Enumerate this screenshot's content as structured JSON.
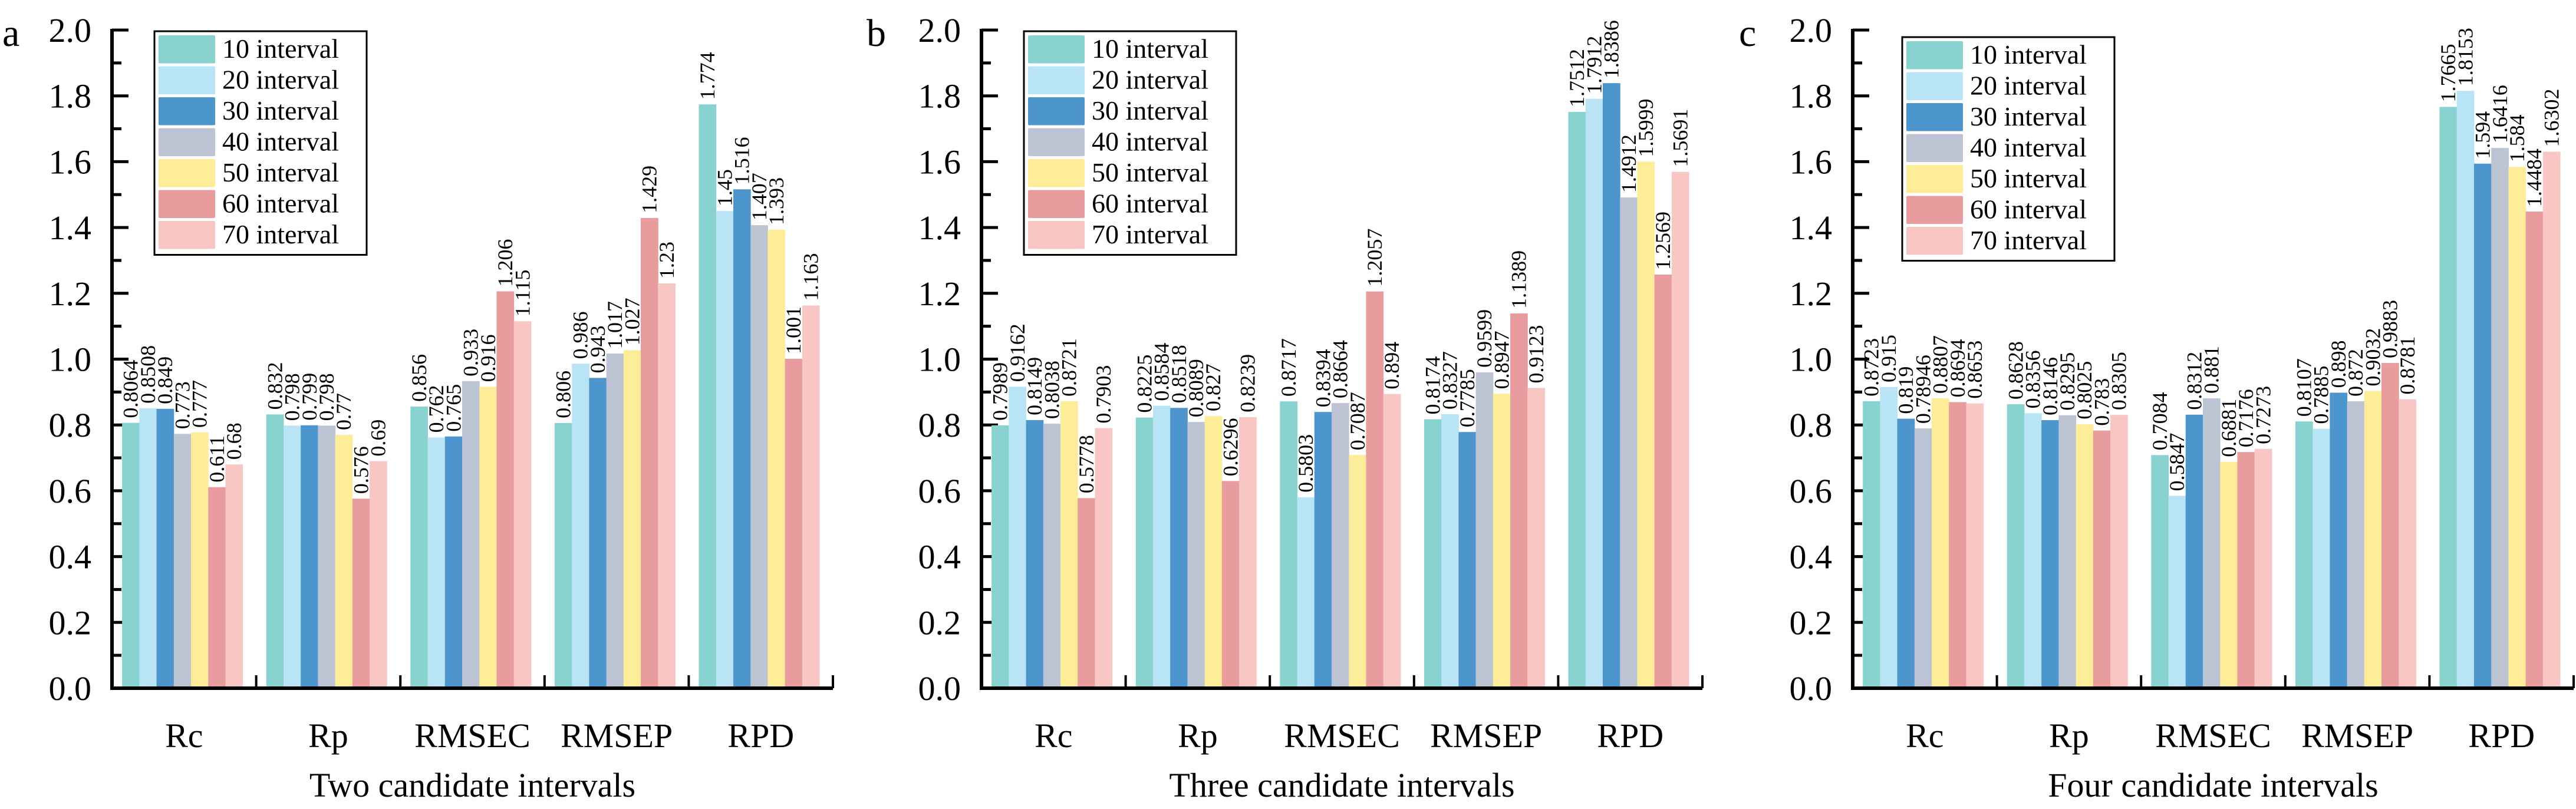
{
  "chart_data": [
    {
      "type": "bar",
      "panel_label": "a",
      "title": "",
      "xlabel": "Two candidate intervals",
      "ylabel": "",
      "ylim": [
        0,
        2.0
      ],
      "yticks": [
        "0.0",
        "0.2",
        "0.4",
        "0.6",
        "0.8",
        "1.0",
        "1.2",
        "1.4",
        "1.6",
        "1.8",
        "2.0"
      ],
      "grid": false,
      "legend_position": "top-left",
      "categories": [
        "Rc",
        "Rp",
        "RMSEC",
        "RMSEP",
        "RPD"
      ],
      "series": [
        {
          "name": "10 interval",
          "color": "#88d2cf",
          "values": [
            0.8064,
            0.832,
            0.856,
            0.806,
            1.774
          ],
          "labels": [
            "0.8064",
            "0.832",
            "0.856",
            "0.806",
            "1.774"
          ]
        },
        {
          "name": "20 interval",
          "color": "#b8e4f6",
          "values": [
            0.8508,
            0.798,
            0.762,
            0.986,
            1.45
          ],
          "labels": [
            "0.8508",
            "0.798",
            "0.762",
            "0.986",
            "1.45"
          ]
        },
        {
          "name": "30 interval",
          "color": "#4d96cd",
          "values": [
            0.849,
            0.799,
            0.765,
            0.943,
            1.516
          ],
          "labels": [
            "0.849",
            "0.799",
            "0.765",
            "0.943",
            "1.516"
          ]
        },
        {
          "name": "40 interval",
          "color": "#bcc3d3",
          "values": [
            0.773,
            0.798,
            0.933,
            1.017,
            1.407
          ],
          "labels": [
            "0.773",
            "0.798",
            "0.933",
            "1.017",
            "1.407"
          ]
        },
        {
          "name": "50 interval",
          "color": "#fdec98",
          "values": [
            0.777,
            0.77,
            0.916,
            1.027,
            1.393
          ],
          "labels": [
            "0.777",
            "0.77",
            "0.916",
            "1.027",
            "1.393"
          ]
        },
        {
          "name": "60 interval",
          "color": "#e89c9d",
          "values": [
            0.611,
            0.576,
            1.206,
            1.429,
            1.001
          ],
          "labels": [
            "0.611",
            "0.576",
            "1.206",
            "1.429",
            "1.001"
          ]
        },
        {
          "name": "70 interval",
          "color": "#f8c7c3",
          "values": [
            0.68,
            0.69,
            1.115,
            1.23,
            1.163
          ],
          "labels": [
            "0.68",
            "0.69",
            "1.115",
            "1.23",
            "1.163"
          ]
        }
      ]
    },
    {
      "type": "bar",
      "panel_label": "b",
      "title": "",
      "xlabel": "Three candidate intervals",
      "ylabel": "",
      "ylim": [
        0,
        2.0
      ],
      "yticks": [
        "0.0",
        "0.2",
        "0.4",
        "0.6",
        "0.8",
        "1.0",
        "1.2",
        "1.4",
        "1.6",
        "1.8",
        "2.0"
      ],
      "grid": false,
      "legend_position": "top-left",
      "categories": [
        "Rc",
        "Rp",
        "RMSEC",
        "RMSEP",
        "RPD"
      ],
      "series": [
        {
          "name": "10 interval",
          "color": "#88d2cf",
          "values": [
            0.7989,
            0.8225,
            0.8717,
            0.8174,
            1.7512
          ],
          "labels": [
            "0.7989",
            "0.8225",
            "0.8717",
            "0.8174",
            "1.7512"
          ]
        },
        {
          "name": "20 interval",
          "color": "#b8e4f6",
          "values": [
            0.9162,
            0.8584,
            0.5803,
            0.8327,
            1.7912
          ],
          "labels": [
            "0.9162",
            "0.8584",
            "0.5803",
            "0.8327",
            "1.7912"
          ]
        },
        {
          "name": "30 interval",
          "color": "#4d96cd",
          "values": [
            0.8149,
            0.8518,
            0.8394,
            0.7785,
            1.8386
          ],
          "labels": [
            "0.8149",
            "0.8518",
            "0.8394",
            "0.7785",
            "1.8386"
          ]
        },
        {
          "name": "40 interval",
          "color": "#bcc3d3",
          "values": [
            0.8038,
            0.8089,
            0.8664,
            0.9599,
            1.4912
          ],
          "labels": [
            "0.8038",
            "0.8089",
            "0.8664",
            "0.9599",
            "1.4912"
          ]
        },
        {
          "name": "50 interval",
          "color": "#fdec98",
          "values": [
            0.8721,
            0.827,
            0.7087,
            0.8947,
            1.5999
          ],
          "labels": [
            "0.8721",
            "0.827",
            "0.7087",
            "0.8947",
            "1.5999"
          ]
        },
        {
          "name": "60 interval",
          "color": "#e89c9d",
          "values": [
            0.5778,
            0.6296,
            1.2057,
            1.1389,
            1.2569
          ],
          "labels": [
            "0.5778",
            "0.6296",
            "1.2057",
            "1.1389",
            "1.2569"
          ]
        },
        {
          "name": "70 interval",
          "color": "#f8c7c3",
          "values": [
            0.7903,
            0.8239,
            0.894,
            0.9123,
            1.5691
          ],
          "labels": [
            "0.7903",
            "0.8239",
            "0.894",
            "0.9123",
            "1.5691"
          ]
        }
      ]
    },
    {
      "type": "bar",
      "panel_label": "c",
      "title": "",
      "xlabel": "Four candidate intervals",
      "ylabel": "",
      "ylim": [
        0,
        2.0
      ],
      "yticks": [
        "0.0",
        "0.2",
        "0.4",
        "0.6",
        "0.8",
        "1.0",
        "1.2",
        "1.4",
        "1.6",
        "1.8",
        "2.0"
      ],
      "grid": false,
      "legend_position": "top-left",
      "categories": [
        "Rc",
        "Rp",
        "RMSEC",
        "RMSEP",
        "RPD"
      ],
      "series": [
        {
          "name": "10 interval",
          "color": "#88d2cf",
          "values": [
            0.8723,
            0.8628,
            0.7084,
            0.8107,
            1.7665
          ],
          "labels": [
            "0.8723",
            "0.8628",
            "0.7084",
            "0.8107",
            "1.7665"
          ]
        },
        {
          "name": "20 interval",
          "color": "#b8e4f6",
          "values": [
            0.915,
            0.8356,
            0.5847,
            0.7885,
            1.8153
          ],
          "labels": [
            "0.915",
            "0.8356",
            "0.5847",
            "0.7885",
            "1.8153"
          ]
        },
        {
          "name": "30 interval",
          "color": "#4d96cd",
          "values": [
            0.819,
            0.8146,
            0.8312,
            0.898,
            1.594
          ],
          "labels": [
            "0.819",
            "0.8146",
            "0.8312",
            "0.898",
            "1.594"
          ]
        },
        {
          "name": "40 interval",
          "color": "#bcc3d3",
          "values": [
            0.78946,
            0.8295,
            0.881,
            0.872,
            1.6416
          ],
          "labels": [
            "0.78946",
            "0.8295",
            "0.881",
            "0.872",
            "1.6416"
          ]
        },
        {
          "name": "50 interval",
          "color": "#fdec98",
          "values": [
            0.8807,
            0.8025,
            0.6881,
            0.9032,
            1.584
          ],
          "labels": [
            "0.8807",
            "0.8025",
            "0.6881",
            "0.9032",
            "1.584"
          ]
        },
        {
          "name": "60 interval",
          "color": "#e89c9d",
          "values": [
            0.8694,
            0.783,
            0.7176,
            0.9883,
            1.4484
          ],
          "labels": [
            "0.8694",
            "0.783",
            "0.7176",
            "0.9883",
            "1.4484"
          ]
        },
        {
          "name": "70 interval",
          "color": "#f8c7c3",
          "values": [
            0.8653,
            0.8305,
            0.7273,
            0.8781,
            1.6302
          ],
          "labels": [
            "0.8653",
            "0.8305",
            "0.7273",
            "0.8781",
            "1.6302"
          ]
        }
      ]
    }
  ]
}
